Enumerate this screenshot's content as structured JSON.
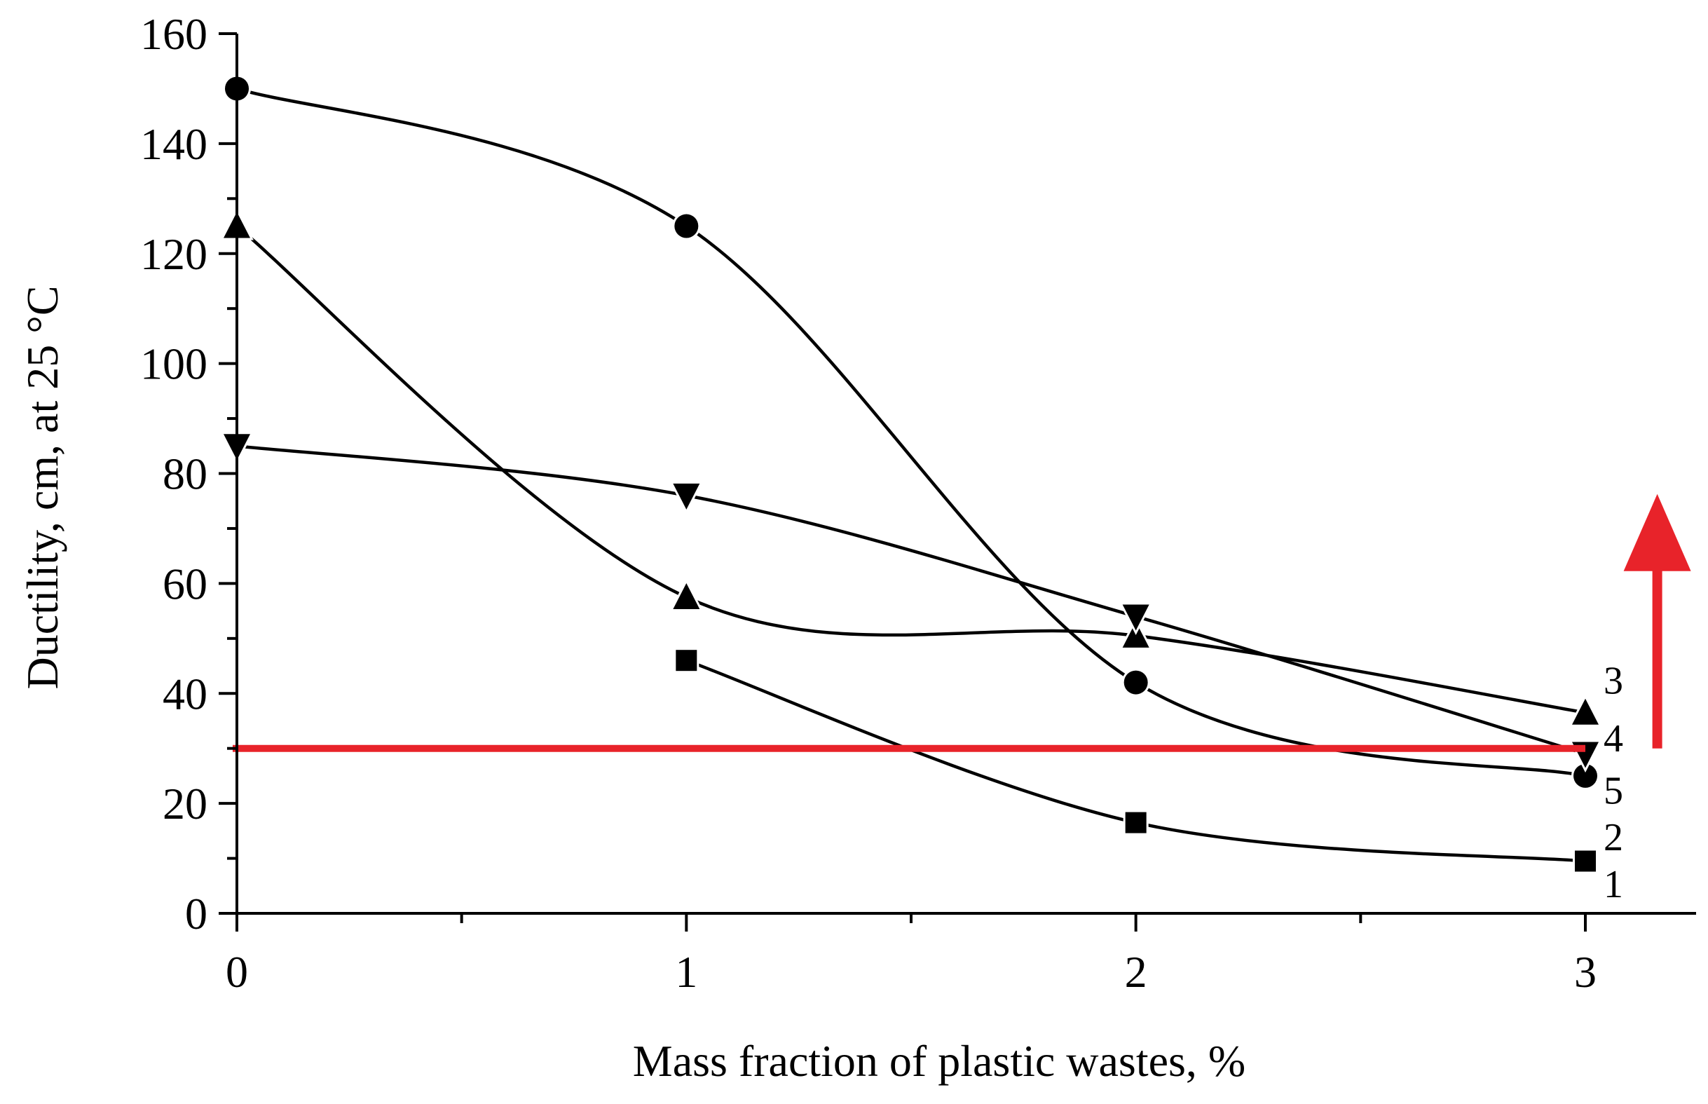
{
  "chart_data": {
    "type": "line",
    "title": "",
    "xlabel": "Mass fraction of plastic wastes, %",
    "ylabel": "Ductility, cm, at 25 °C",
    "xlim": [
      0,
      3.25
    ],
    "ylim": [
      0,
      160
    ],
    "x_ticks": [
      0,
      1,
      2,
      3
    ],
    "x_tick_labels": [
      "0",
      "1",
      "2",
      "3"
    ],
    "x_minor_ticks": [
      0.5,
      1.5,
      2.5
    ],
    "y_ticks": [
      0,
      20,
      40,
      60,
      80,
      100,
      120,
      140,
      160
    ],
    "y_tick_labels": [
      "0",
      "20",
      "40",
      "60",
      "80",
      "100",
      "120",
      "140",
      "160"
    ],
    "y_minor_ticks": [
      10,
      30,
      50,
      70,
      90,
      110,
      130,
      150
    ],
    "grid": false,
    "series": [
      {
        "name": "1",
        "marker": "square",
        "x": [
          1,
          2,
          3
        ],
        "values": [
          46,
          16.5,
          9.5
        ]
      },
      {
        "name": "2",
        "marker": "circle",
        "x": [
          0,
          1,
          2,
          3
        ],
        "values": [
          150,
          125,
          42,
          25
        ]
      },
      {
        "name": "3",
        "marker": "triangle-up",
        "x": [
          0,
          1,
          2,
          3
        ],
        "values": [
          125,
          57.5,
          50.5,
          36.5
        ]
      },
      {
        "name": "4",
        "marker": "triangle-down",
        "x": [
          0,
          1,
          2,
          3
        ],
        "values": [
          85,
          76,
          54,
          29
        ]
      },
      {
        "name": "5",
        "marker": "circle",
        "x": [],
        "values": []
      }
    ],
    "series_labels_order": [
      "3",
      "4",
      "5",
      "2",
      "1"
    ],
    "reference_line": {
      "value": 30,
      "color": "#e8232a"
    },
    "arrow": {
      "from": 30,
      "to": 75,
      "x": 3.16,
      "color": "#e8232a"
    }
  }
}
